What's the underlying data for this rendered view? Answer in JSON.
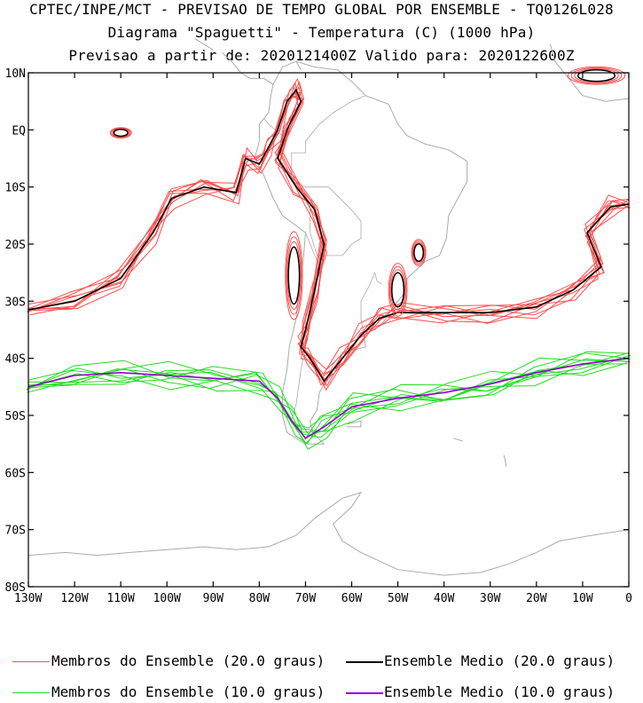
{
  "header": {
    "line1": "CPTEC/INPE/MCT - PREVISAO DE TEMPO GLOBAL POR ENSEMBLE - TQ0126L028",
    "line2": "Diagrama \"Spaguetti\" - Temperatura (C) (1000 hPa)",
    "line3": "Previsao a partir de: 2020121400Z  Valido para: 2020122600Z"
  },
  "axes": {
    "lat_labels": [
      "10N",
      "EQ",
      "10S",
      "20S",
      "30S",
      "40S",
      "50S",
      "60S",
      "70S",
      "80S"
    ],
    "lon_labels": [
      "130W",
      "120W",
      "110W",
      "100W",
      "90W",
      "80W",
      "70W",
      "60W",
      "50W",
      "40W",
      "30W",
      "20W",
      "10W",
      "0"
    ],
    "lat_range": [
      -80,
      10
    ],
    "lon_range": [
      -130,
      0
    ]
  },
  "colors": {
    "member_20": "#ff4d4d",
    "mean_20": "#000000",
    "member_10": "#22dd22",
    "mean_10": "#9400d3",
    "coast": "#aaaaaa"
  },
  "legend": {
    "item1": "Membros do Ensemble (20.0 graus)",
    "item2": "Ensemble Medio (20.0 graus)",
    "item3": "Membros do Ensemble (10.0 graus)",
    "item4": "Ensemble Medio (10.0 graus)"
  },
  "map_data": {
    "mean_20_path": [
      [
        -130,
        -31.5
      ],
      [
        -120,
        -30
      ],
      [
        -110,
        -26
      ],
      [
        -103,
        -18
      ],
      [
        -99,
        -12
      ],
      [
        -92,
        -10
      ],
      [
        -85,
        -11
      ],
      [
        -83,
        -5
      ],
      [
        -80,
        -6
      ],
      [
        -78,
        -3
      ],
      [
        -76,
        0
      ],
      [
        -74,
        5
      ],
      [
        -72,
        7
      ],
      [
        -71,
        5
      ],
      [
        -74,
        0
      ],
      [
        -76,
        -5
      ],
      [
        -72,
        -10
      ],
      [
        -68,
        -14
      ],
      [
        -66,
        -20
      ],
      [
        -68,
        -28
      ],
      [
        -70,
        -35
      ],
      [
        -71,
        -38
      ],
      [
        -69,
        -40
      ],
      [
        -66,
        -44
      ],
      [
        -62,
        -40
      ],
      [
        -58,
        -36
      ],
      [
        -54,
        -33
      ],
      [
        -50,
        -32
      ],
      [
        -40,
        -32
      ],
      [
        -30,
        -32
      ],
      [
        -20,
        -31
      ],
      [
        -12,
        -28
      ],
      [
        -6,
        -24
      ],
      [
        -9,
        -18
      ],
      [
        -4,
        -13.5
      ],
      [
        0,
        -13
      ]
    ],
    "mean_10_path": [
      [
        -130,
        -45
      ],
      [
        -120,
        -43
      ],
      [
        -110,
        -42.5
      ],
      [
        -100,
        -43
      ],
      [
        -90,
        -43.5
      ],
      [
        -80,
        -44
      ],
      [
        -76,
        -47
      ],
      [
        -73,
        -51
      ],
      [
        -70,
        -54
      ],
      [
        -66,
        -52
      ],
      [
        -60,
        -48.5
      ],
      [
        -50,
        -47
      ],
      [
        -40,
        -46
      ],
      [
        -30,
        -44.5
      ],
      [
        -20,
        -42.5
      ],
      [
        -10,
        -41
      ],
      [
        0,
        -40
      ]
    ],
    "member_20_count": 9,
    "member_10_count": 9
  }
}
